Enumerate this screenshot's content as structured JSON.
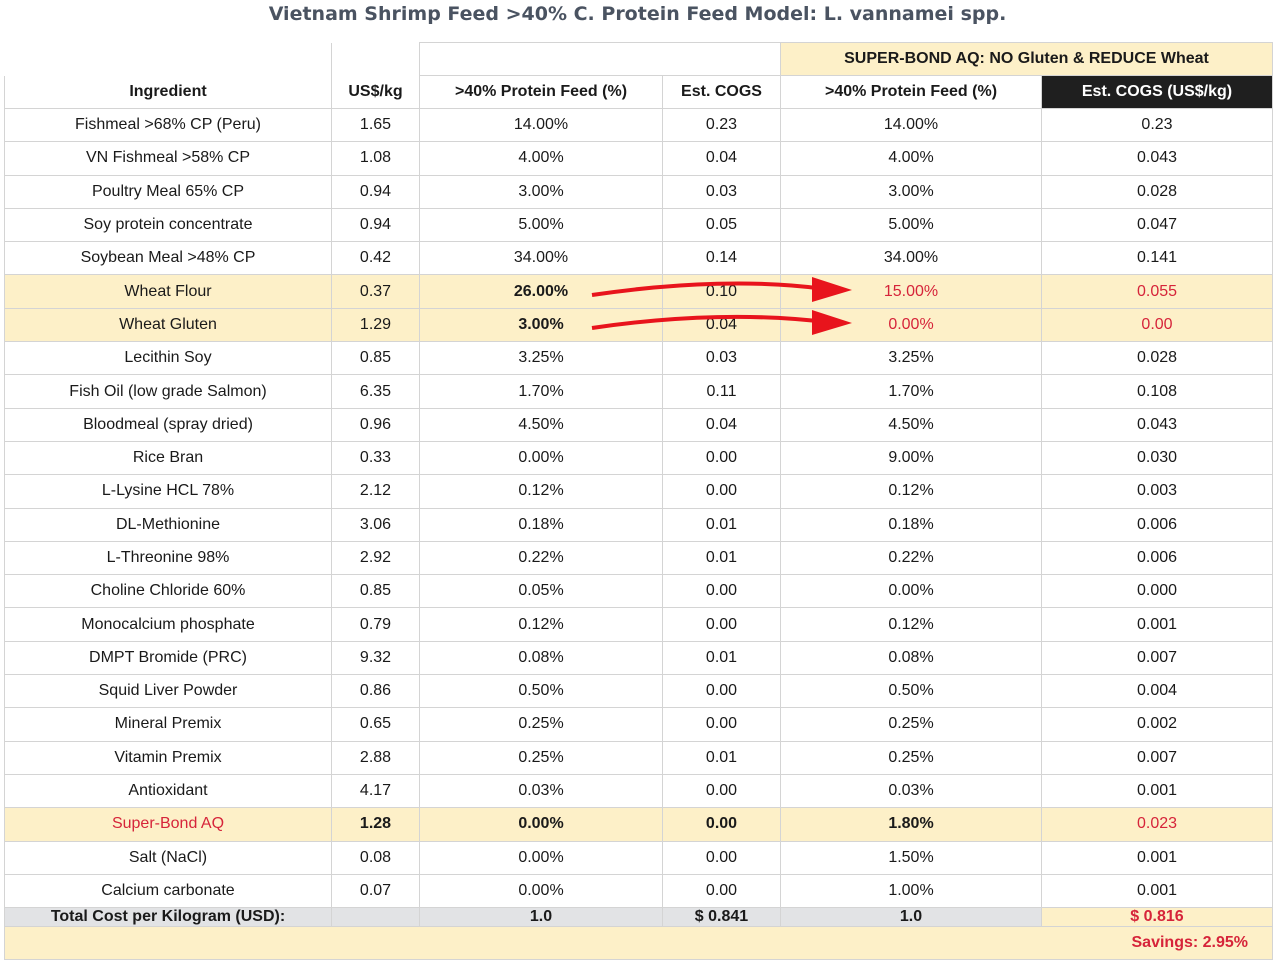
{
  "title": "Vietnam Shrimp Feed >40% C. Protein Feed Model: L. vannamei spp.",
  "superbond_header": "SUPER-BOND AQ: NO Gluten & REDUCE Wheat",
  "columns": [
    "Ingredient",
    "US$/kg",
    ">40% Protein Feed (%)",
    "Est. COGS",
    ">40% Protein Feed (%)",
    "Est. COGS (US$/kg)"
  ],
  "rows": [
    {
      "name": "Fishmeal >68% CP (Peru)",
      "price": "1.65",
      "pct": "14.00%",
      "cogs": "0.23",
      "sb_pct": "14.00%",
      "sb_cogs": "0.23"
    },
    {
      "name": "VN Fishmeal >58% CP",
      "price": "1.08",
      "pct": "4.00%",
      "cogs": "0.04",
      "sb_pct": "4.00%",
      "sb_cogs": "0.043"
    },
    {
      "name": "Poultry Meal 65% CP",
      "price": "0.94",
      "pct": "3.00%",
      "cogs": "0.03",
      "sb_pct": "3.00%",
      "sb_cogs": "0.028"
    },
    {
      "name": "Soy protein concentrate",
      "price": "0.94",
      "pct": "5.00%",
      "cogs": "0.05",
      "sb_pct": "5.00%",
      "sb_cogs": "0.047"
    },
    {
      "name": "Soybean Meal >48% CP",
      "price": "0.42",
      "pct": "34.00%",
      "cogs": "0.14",
      "sb_pct": "34.00%",
      "sb_cogs": "0.141"
    },
    {
      "name": "Wheat Flour",
      "price": "0.37",
      "pct": "26.00%",
      "cogs": "0.10",
      "sb_pct": "15.00%",
      "sb_cogs": "0.055",
      "highlight": true
    },
    {
      "name": "Wheat Gluten",
      "price": "1.29",
      "pct": "3.00%",
      "cogs": "0.04",
      "sb_pct": "0.00%",
      "sb_cogs": "0.00",
      "highlight": true
    },
    {
      "name": "Lecithin Soy",
      "price": "0.85",
      "pct": "3.25%",
      "cogs": "0.03",
      "sb_pct": "3.25%",
      "sb_cogs": "0.028"
    },
    {
      "name": "Fish Oil (low grade Salmon)",
      "price": "6.35",
      "pct": "1.70%",
      "cogs": "0.11",
      "sb_pct": "1.70%",
      "sb_cogs": "0.108"
    },
    {
      "name": "Bloodmeal (spray dried)",
      "price": "0.96",
      "pct": "4.50%",
      "cogs": "0.04",
      "sb_pct": "4.50%",
      "sb_cogs": "0.043"
    },
    {
      "name": "Rice Bran",
      "price": "0.33",
      "pct": "0.00%",
      "cogs": "0.00",
      "sb_pct": "9.00%",
      "sb_cogs": "0.030"
    },
    {
      "name": "L-Lysine HCL 78%",
      "price": "2.12",
      "pct": "0.12%",
      "cogs": "0.00",
      "sb_pct": "0.12%",
      "sb_cogs": "0.003"
    },
    {
      "name": "DL-Methionine",
      "price": "3.06",
      "pct": "0.18%",
      "cogs": "0.01",
      "sb_pct": "0.18%",
      "sb_cogs": "0.006"
    },
    {
      "name": "L-Threonine 98%",
      "price": "2.92",
      "pct": "0.22%",
      "cogs": "0.01",
      "sb_pct": "0.22%",
      "sb_cogs": "0.006"
    },
    {
      "name": "Choline Chloride 60%",
      "price": "0.85",
      "pct": "0.05%",
      "cogs": "0.00",
      "sb_pct": "0.00%",
      "sb_cogs": "0.000"
    },
    {
      "name": "Monocalcium phosphate",
      "price": "0.79",
      "pct": "0.12%",
      "cogs": "0.00",
      "sb_pct": "0.12%",
      "sb_cogs": "0.001"
    },
    {
      "name": "DMPT Bromide (PRC)",
      "price": "9.32",
      "pct": "0.08%",
      "cogs": "0.01",
      "sb_pct": "0.08%",
      "sb_cogs": "0.007"
    },
    {
      "name": "Squid Liver Powder",
      "price": "0.86",
      "pct": "0.50%",
      "cogs": "0.00",
      "sb_pct": "0.50%",
      "sb_cogs": "0.004"
    },
    {
      "name": "Mineral Premix",
      "price": "0.65",
      "pct": "0.25%",
      "cogs": "0.00",
      "sb_pct": "0.25%",
      "sb_cogs": "0.002"
    },
    {
      "name": "Vitamin Premix",
      "price": "2.88",
      "pct": "0.25%",
      "cogs": "0.01",
      "sb_pct": "0.25%",
      "sb_cogs": "0.007"
    },
    {
      "name": "Antioxidant",
      "price": "4.17",
      "pct": "0.03%",
      "cogs": "0.00",
      "sb_pct": "0.03%",
      "sb_cogs": "0.001"
    },
    {
      "name": "Super-Bond AQ",
      "price": "1.28",
      "pct": "0.00%",
      "cogs": "0.00",
      "sb_pct": "1.80%",
      "sb_cogs": "0.023",
      "highlight": true,
      "product": true
    },
    {
      "name": "Salt (NaCl)",
      "price": "0.08",
      "pct": "0.00%",
      "cogs": "0.00",
      "sb_pct": "1.50%",
      "sb_cogs": "0.001"
    },
    {
      "name": "Calcium carbonate",
      "price": "0.07",
      "pct": "0.00%",
      "cogs": "0.00",
      "sb_pct": "1.00%",
      "sb_cogs": "0.001"
    }
  ],
  "total": {
    "label": "Total Cost per Kilogram (USD):",
    "price": "",
    "pct": "1.0",
    "cogs": "$ 0.841",
    "sb_pct": "1.0",
    "sb_cogs": "$ 0.816"
  },
  "savings": "Savings: 2.95%",
  "colors": {
    "highlight": "#fdf0c8",
    "red": "#d6243a",
    "dark_header": "#1f1f1f",
    "total_row": "#e2e3e5",
    "arrow": "#e8141c"
  }
}
